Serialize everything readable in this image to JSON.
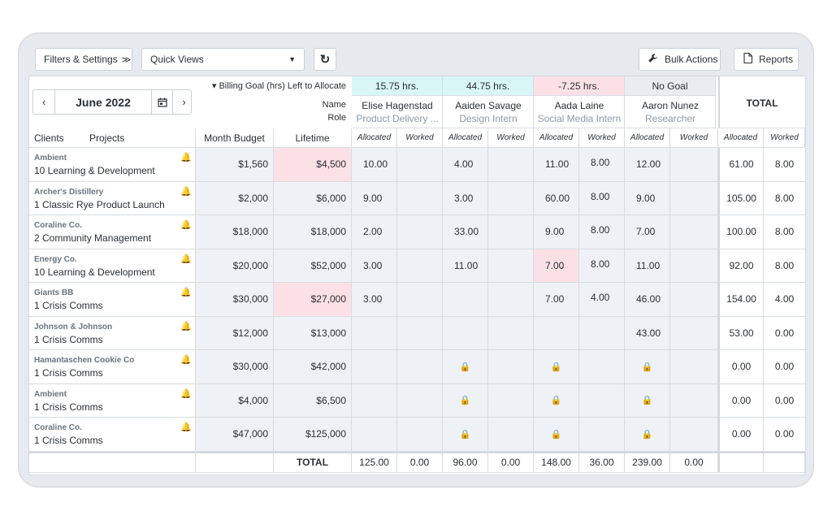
{
  "toolbar": {
    "filters_label": "Filters & Settings",
    "filters_chevron": "≫",
    "quick_views_label": "Quick Views",
    "bulk_actions_label": "Bulk Actions",
    "reports_label": "Reports"
  },
  "datepicker": {
    "month": "June 2022"
  },
  "header": {
    "billing_goal_label": "▾ Billing Goal (hrs) Left to Allocate",
    "name_label": "Name",
    "role_label": "Role",
    "total_label": "TOTAL",
    "clients_label": "Clients",
    "projects_label": "Projects",
    "month_budget_label": "Month Budget",
    "lifetime_label": "Lifetime",
    "allocated_label": "Allocated",
    "worked_label": "Worked"
  },
  "people": [
    {
      "name": "Elise Hagenstad",
      "role": "Product Delivery ...",
      "goal": "15.75 hrs.",
      "goal_color": "#d9f6f7"
    },
    {
      "name": "Aaiden Savage",
      "role": "Design Intern",
      "goal": "44.75 hrs.",
      "goal_color": "#d9f6f7"
    },
    {
      "name": "Aada Laine",
      "role": "Social Media Intern",
      "goal": "-7.25 hrs.",
      "goal_color": "#fbe1e6"
    },
    {
      "name": "Aaron Nunez",
      "role": "Researcher",
      "goal": "No Goal",
      "goal_color": "#e9ecf0"
    }
  ],
  "rows": [
    {
      "client": "Ambient",
      "project": "10 Learning & Development",
      "budget": "$1,560",
      "lifetime": "$4,500",
      "cells": [
        "10.00",
        "",
        "4.00",
        "",
        "11.00",
        "8.00",
        "12.00",
        ""
      ],
      "total_alloc": "61.00",
      "total_worked": "8.00"
    },
    {
      "client": "Archer's Distillery",
      "project": "1 Classic Rye Product Launch",
      "budget": "$2,000",
      "lifetime": "$6,000",
      "cells": [
        "9.00",
        "",
        "3.00",
        "",
        "60.00",
        "8.00",
        "9.00",
        ""
      ],
      "total_alloc": "105.00",
      "total_worked": "8.00"
    },
    {
      "client": "Coraline Co.",
      "project": "2 Community Management",
      "budget": "$18,000",
      "lifetime": "$18,000",
      "cells": [
        "2.00",
        "",
        "33.00",
        "",
        "9.00",
        "8.00",
        "7.00",
        ""
      ],
      "total_alloc": "100.00",
      "total_worked": "8.00"
    },
    {
      "client": "Energy Co.",
      "project": "10 Learning & Development",
      "budget": "$20,000",
      "lifetime": "$52,000",
      "cells": [
        "3.00",
        "",
        "11.00",
        "",
        "7.00",
        "8.00",
        "11.00",
        ""
      ],
      "total_alloc": "92.00",
      "total_worked": "8.00"
    },
    {
      "client": "Giants BB",
      "project": "1 Crisis Comms",
      "budget": "$30,000",
      "lifetime": "$27,000",
      "cells": [
        "3.00",
        "",
        "",
        "",
        "7.00",
        "4.00",
        "46.00",
        ""
      ],
      "total_alloc": "154.00",
      "total_worked": "4.00"
    },
    {
      "client": "Johnson & Johnson",
      "project": "1 Crisis Comms",
      "budget": "$12,000",
      "lifetime": "$13,000",
      "cells": [
        "",
        "",
        "",
        "",
        "",
        "",
        "43.00",
        ""
      ],
      "total_alloc": "53.00",
      "total_worked": "0.00"
    },
    {
      "client": "Hamantaschen Cookie Co",
      "project": "1 Crisis Comms",
      "budget": "$30,000",
      "lifetime": "$42,000",
      "cells": [
        "",
        "",
        "lock",
        "",
        "lock",
        "",
        "lock",
        ""
      ],
      "total_alloc": "0.00",
      "total_worked": "0.00"
    },
    {
      "client": "Ambient",
      "project": "1 Crisis Comms",
      "budget": "$4,000",
      "lifetime": "$6,500",
      "cells": [
        "",
        "",
        "lock",
        "",
        "lock",
        "",
        "lock",
        ""
      ],
      "total_alloc": "0.00",
      "total_worked": "0.00"
    },
    {
      "client": "Coraline Co.",
      "project": "1 Crisis Comms",
      "budget": "$47,000",
      "lifetime": "$125,000",
      "cells": [
        "",
        "",
        "lock",
        "",
        "lock",
        "",
        "lock",
        ""
      ],
      "total_alloc": "0.00",
      "total_worked": "0.00"
    }
  ],
  "footer": {
    "total_label": "TOTAL",
    "values": [
      "125.00",
      "0.00",
      "96.00",
      "0.00",
      "148.00",
      "36.00",
      "239.00",
      "0.00"
    ]
  }
}
